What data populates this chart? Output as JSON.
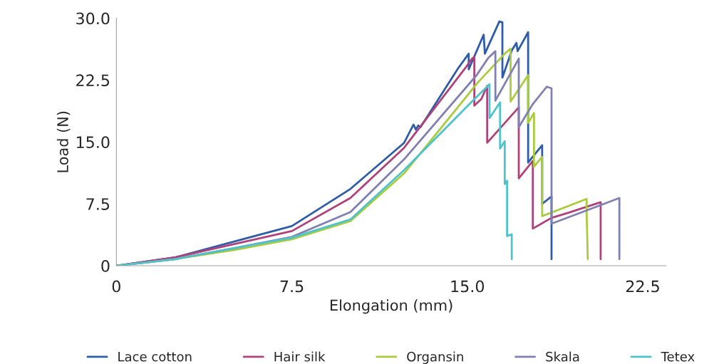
{
  "chart_data": {
    "type": "line",
    "xlabel": "Elongation (mm)",
    "ylabel": "Load (N)",
    "xlim": [
      0,
      23.5
    ],
    "ylim": [
      0,
      30
    ],
    "xticks": [
      0,
      {
        "value": 7.5,
        "label": "7.5"
      },
      {
        "value": 15,
        "label": "15.0"
      },
      {
        "value": 22.5,
        "label": "22.5"
      }
    ],
    "yticks": [
      0,
      {
        "value": 7.5,
        "label": "7.5"
      },
      {
        "value": 15,
        "label": "15.0"
      },
      {
        "value": 22.5,
        "label": "22.5"
      },
      {
        "value": 30,
        "label": "30.0"
      }
    ],
    "grid": false,
    "legend": "bottom",
    "marker": "none",
    "line_style": "solid",
    "series": [
      {
        "name": "Lace cotton",
        "color": "#2e5ca8",
        "x": [
          0,
          2.5,
          5,
          7.5,
          10,
          12.3,
          12.7,
          12.8,
          12.9,
          13.0,
          14.6,
          15.06,
          15.06,
          15.7,
          15.75,
          16.37,
          16.5,
          16.5,
          16.9,
          17.1,
          17.15,
          17.6,
          17.6,
          18.2,
          18.2,
          18.6,
          18.6
        ],
        "values": [
          0,
          1.0,
          2.9,
          4.8,
          9.3,
          14.9,
          17.1,
          16.5,
          17.0,
          16.8,
          23.9,
          25.7,
          23.8,
          28.0,
          25.7,
          29.6,
          29.5,
          22.8,
          26.1,
          27.0,
          26.0,
          28.3,
          12.5,
          14.6,
          7.5,
          8.4,
          0.8
        ]
      },
      {
        "name": "Hair silk",
        "color": "#b0427a",
        "x": [
          0,
          2.5,
          5,
          7.5,
          10,
          12.3,
          14.9,
          15.2,
          15.3,
          15.3,
          15.6,
          15.85,
          15.85,
          17.2,
          17.2,
          17.8,
          17.8,
          18.6,
          19.3,
          20.7,
          20.7
        ],
        "values": [
          0,
          1.0,
          2.6,
          4.2,
          8.2,
          14.3,
          23.9,
          25.1,
          25.3,
          19.4,
          20.2,
          21.8,
          14.9,
          19.2,
          10.6,
          12.7,
          4.5,
          5.8,
          6.4,
          7.7,
          0.8
        ]
      },
      {
        "name": "Organsin",
        "color": "#a8cc3c",
        "x": [
          0,
          2.5,
          5,
          7.5,
          10,
          12.3,
          15.45,
          16.6,
          16.85,
          16.85,
          17.6,
          17.6,
          17.85,
          17.85,
          18.2,
          18.2,
          20.1,
          20.1,
          20.15
        ],
        "values": [
          0,
          0.8,
          1.9,
          3.2,
          5.4,
          11.2,
          22.2,
          25.7,
          26.3,
          19.9,
          23.1,
          17.3,
          18.5,
          12.0,
          13.2,
          6.0,
          8.1,
          6.5,
          0.8
        ]
      },
      {
        "name": "Skala",
        "color": "#8080b4",
        "x": [
          0,
          2.5,
          5,
          7.5,
          10,
          12.3,
          15.4,
          15.9,
          16.2,
          16.2,
          17.2,
          17.2,
          17.8,
          18.4,
          18.6,
          18.6,
          21.5,
          21.5
        ],
        "values": [
          0,
          0.8,
          2.1,
          3.5,
          6.5,
          12.9,
          23.1,
          25.2,
          26.0,
          20.0,
          25.1,
          16.8,
          19.6,
          21.7,
          21.5,
          5.1,
          8.2,
          0.8
        ]
      },
      {
        "name": "Tetex",
        "color": "#4fc3cc",
        "x": [
          0,
          2.5,
          5,
          7.5,
          10,
          12.3,
          15.2,
          15.95,
          15.95,
          16.4,
          16.4,
          16.6,
          16.6,
          16.7,
          16.7,
          16.9,
          16.9
        ],
        "values": [
          0,
          0.8,
          2.1,
          3.4,
          5.6,
          11.6,
          19.9,
          22.0,
          17.9,
          19.8,
          14.2,
          15.1,
          9.9,
          10.3,
          3.6,
          3.8,
          0.8
        ]
      }
    ]
  }
}
